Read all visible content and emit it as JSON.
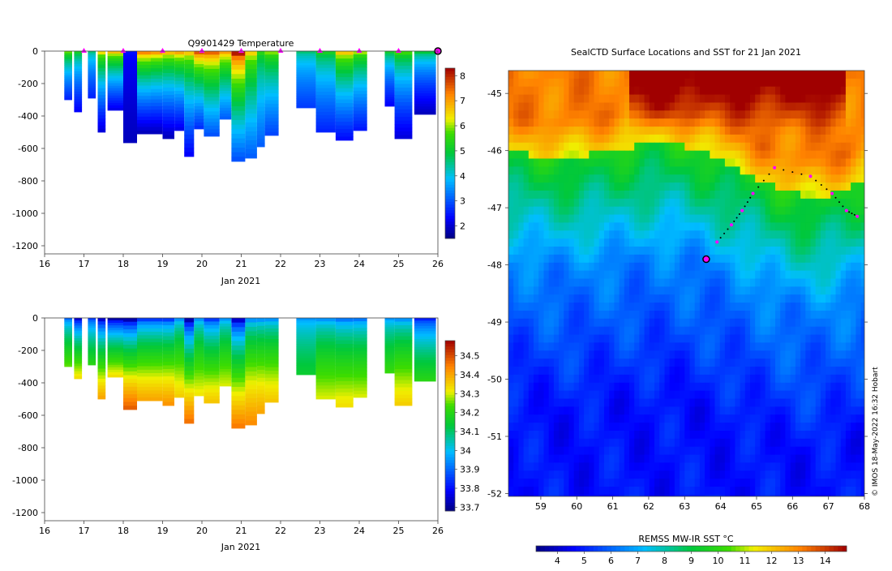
{
  "figure": {
    "footer": "© IMOS 18-May-2022 16:32 Hobart"
  },
  "chart_data": [
    {
      "type": "heatmap",
      "id": "temperature-section",
      "title": "Q9901429  Temperature",
      "xlabel": "Jan 2021",
      "ylabel": "",
      "xlim": [
        16,
        26
      ],
      "ylim": [
        -1250,
        0
      ],
      "xticks": [
        "16",
        "17",
        "18",
        "19",
        "20",
        "21",
        "22",
        "23",
        "24",
        "25",
        "26"
      ],
      "yticks": [
        "0",
        "-200",
        "-400",
        "-600",
        "-800",
        "-1000",
        "-1200"
      ],
      "ytick_values": [
        0,
        -200,
        -400,
        -600,
        -800,
        -1000,
        -1200
      ],
      "colorbar": {
        "min": 1.5,
        "max": 8.3,
        "ticks": [
          "2",
          "3",
          "4",
          "5",
          "6",
          "7",
          "8"
        ],
        "tick_values": [
          2,
          3,
          4,
          5,
          6,
          7,
          8
        ]
      },
      "profile_markers_day": [
        17,
        18,
        19,
        20,
        21,
        22,
        23,
        24,
        25
      ],
      "current_marker": {
        "day": 26,
        "depth": 0
      },
      "profiles": [
        {
          "day": 16.5,
          "width": 0.2,
          "max_depth": 300,
          "surface": 5.8,
          "deep": 2.6
        },
        {
          "day": 16.75,
          "width": 0.2,
          "max_depth": 375,
          "surface": 5.2,
          "deep": 2.3
        },
        {
          "day": 17.1,
          "width": 0.2,
          "max_depth": 290,
          "surface": 4.6,
          "deep": 2.6
        },
        {
          "day": 17.35,
          "width": 0.2,
          "max_depth": 500,
          "surface": 6.4,
          "deep": 2.1
        },
        {
          "day": 17.6,
          "width": 0.4,
          "max_depth": 365,
          "surface": 6.7,
          "deep": 2.2
        },
        {
          "day": 18.0,
          "width": 0.35,
          "max_depth": 565,
          "surface": 2.4,
          "deep": 1.9
        },
        {
          "day": 18.35,
          "width": 0.35,
          "max_depth": 510,
          "surface": 7.2,
          "deep": 1.9
        },
        {
          "day": 18.7,
          "width": 0.3,
          "max_depth": 510,
          "surface": 7.0,
          "deep": 1.9
        },
        {
          "day": 19.0,
          "width": 0.3,
          "max_depth": 540,
          "surface": 6.7,
          "deep": 1.9
        },
        {
          "day": 19.3,
          "width": 0.25,
          "max_depth": 490,
          "surface": 6.9,
          "deep": 2.2
        },
        {
          "day": 19.55,
          "width": 0.25,
          "max_depth": 650,
          "surface": 6.6,
          "deep": 2.3
        },
        {
          "day": 19.8,
          "width": 0.25,
          "max_depth": 480,
          "surface": 7.6,
          "deep": 2.7
        },
        {
          "day": 20.05,
          "width": 0.4,
          "max_depth": 525,
          "surface": 7.5,
          "deep": 3.0
        },
        {
          "day": 20.45,
          "width": 0.3,
          "max_depth": 420,
          "surface": 7.0,
          "deep": 3.1
        },
        {
          "day": 20.75,
          "width": 0.35,
          "max_depth": 680,
          "surface": 8.1,
          "deep": 3.0
        },
        {
          "day": 21.1,
          "width": 0.3,
          "max_depth": 660,
          "surface": 6.5,
          "deep": 3.1
        },
        {
          "day": 21.4,
          "width": 0.2,
          "max_depth": 590,
          "surface": 5.4,
          "deep": 3.1
        },
        {
          "day": 21.6,
          "width": 0.35,
          "max_depth": 520,
          "surface": 5.9,
          "deep": 2.9
        },
        {
          "day": 22.4,
          "width": 0.5,
          "max_depth": 350,
          "surface": 4.6,
          "deep": 2.8
        },
        {
          "day": 22.9,
          "width": 0.5,
          "max_depth": 500,
          "surface": 5.2,
          "deep": 2.6
        },
        {
          "day": 23.4,
          "width": 0.45,
          "max_depth": 550,
          "surface": 6.6,
          "deep": 2.4
        },
        {
          "day": 23.85,
          "width": 0.35,
          "max_depth": 490,
          "surface": 6.0,
          "deep": 2.5
        },
        {
          "day": 24.65,
          "width": 0.25,
          "max_depth": 340,
          "surface": 5.1,
          "deep": 2.3
        },
        {
          "day": 24.9,
          "width": 0.45,
          "max_depth": 540,
          "surface": 5.6,
          "deep": 2.1
        },
        {
          "day": 25.4,
          "width": 0.55,
          "max_depth": 390,
          "surface": 4.9,
          "deep": 1.9
        }
      ]
    },
    {
      "type": "heatmap",
      "id": "salinity-section",
      "title": "",
      "xlabel": "Jan 2021",
      "ylabel": "",
      "xlim": [
        16,
        26
      ],
      "ylim": [
        -1250,
        0
      ],
      "xticks": [
        "16",
        "17",
        "18",
        "19",
        "20",
        "21",
        "22",
        "23",
        "24",
        "25",
        "26"
      ],
      "yticks": [
        "0",
        "-200",
        "-400",
        "-600",
        "-800",
        "-1000",
        "-1200"
      ],
      "ytick_values": [
        0,
        -200,
        -400,
        -600,
        -800,
        -1000,
        -1200
      ],
      "colorbar": {
        "min": 33.68,
        "max": 34.58,
        "ticks": [
          "33.7",
          "33.8",
          "33.9",
          "34",
          "34.1",
          "34.2",
          "34.3",
          "34.4",
          "34.5"
        ],
        "tick_values": [
          33.7,
          33.8,
          33.9,
          34.0,
          34.1,
          34.2,
          34.3,
          34.4,
          34.5
        ]
      },
      "profiles": [
        {
          "day": 16.5,
          "width": 0.2,
          "max_depth": 300,
          "surface": 33.9,
          "deep": 34.25
        },
        {
          "day": 16.75,
          "width": 0.2,
          "max_depth": 375,
          "surface": 33.75,
          "deep": 34.33
        },
        {
          "day": 17.1,
          "width": 0.2,
          "max_depth": 290,
          "surface": 33.85,
          "deep": 34.2
        },
        {
          "day": 17.35,
          "width": 0.2,
          "max_depth": 500,
          "surface": 33.75,
          "deep": 34.4
        },
        {
          "day": 17.6,
          "width": 0.4,
          "max_depth": 365,
          "surface": 33.72,
          "deep": 34.33
        },
        {
          "day": 18.0,
          "width": 0.35,
          "max_depth": 565,
          "surface": 33.72,
          "deep": 34.48
        },
        {
          "day": 18.35,
          "width": 0.35,
          "max_depth": 510,
          "surface": 33.85,
          "deep": 34.4
        },
        {
          "day": 18.7,
          "width": 0.3,
          "max_depth": 510,
          "surface": 33.85,
          "deep": 34.4
        },
        {
          "day": 19.0,
          "width": 0.3,
          "max_depth": 540,
          "surface": 33.85,
          "deep": 34.42
        },
        {
          "day": 19.3,
          "width": 0.25,
          "max_depth": 490,
          "surface": 33.95,
          "deep": 34.35
        },
        {
          "day": 19.55,
          "width": 0.25,
          "max_depth": 650,
          "surface": 33.72,
          "deep": 34.46
        },
        {
          "day": 19.8,
          "width": 0.25,
          "max_depth": 480,
          "surface": 33.95,
          "deep": 34.32
        },
        {
          "day": 20.05,
          "width": 0.4,
          "max_depth": 525,
          "surface": 33.85,
          "deep": 34.36
        },
        {
          "day": 20.45,
          "width": 0.3,
          "max_depth": 420,
          "surface": 33.95,
          "deep": 34.3
        },
        {
          "day": 20.75,
          "width": 0.35,
          "max_depth": 680,
          "surface": 33.75,
          "deep": 34.45
        },
        {
          "day": 21.1,
          "width": 0.3,
          "max_depth": 660,
          "surface": 33.95,
          "deep": 34.43
        },
        {
          "day": 21.4,
          "width": 0.2,
          "max_depth": 590,
          "surface": 33.95,
          "deep": 34.4
        },
        {
          "day": 21.6,
          "width": 0.35,
          "max_depth": 520,
          "surface": 33.95,
          "deep": 34.36
        },
        {
          "day": 22.4,
          "width": 0.5,
          "max_depth": 350,
          "surface": 33.95,
          "deep": 34.15
        },
        {
          "day": 22.9,
          "width": 0.5,
          "max_depth": 500,
          "surface": 33.95,
          "deep": 34.3
        },
        {
          "day": 23.4,
          "width": 0.45,
          "max_depth": 550,
          "surface": 33.92,
          "deep": 34.33
        },
        {
          "day": 23.85,
          "width": 0.35,
          "max_depth": 490,
          "surface": 33.92,
          "deep": 34.3
        },
        {
          "day": 24.65,
          "width": 0.25,
          "max_depth": 340,
          "surface": 33.95,
          "deep": 34.22
        },
        {
          "day": 24.9,
          "width": 0.45,
          "max_depth": 540,
          "surface": 33.95,
          "deep": 34.35
        },
        {
          "day": 25.4,
          "width": 0.55,
          "max_depth": 390,
          "surface": 33.82,
          "deep": 34.2
        }
      ]
    },
    {
      "type": "heatmap",
      "id": "sst-map",
      "title": "SealCTD Surface Locations and SST for 21 Jan 2021",
      "xlabel": "",
      "ylabel": "",
      "xlim": [
        58.1,
        68.0
      ],
      "ylim": [
        -52.05,
        -44.6
      ],
      "xticks": [
        "59",
        "60",
        "61",
        "62",
        "63",
        "64",
        "65",
        "66",
        "67",
        "68"
      ],
      "xtick_values": [
        59,
        60,
        61,
        62,
        63,
        64,
        65,
        66,
        67,
        68
      ],
      "yticks": [
        "-45",
        "-46",
        "-47",
        "-48",
        "-49",
        "-50",
        "-51",
        "-52"
      ],
      "ytick_values": [
        -45,
        -46,
        -47,
        -48,
        -49,
        -50,
        -51,
        -52
      ],
      "colorbar": {
        "label": "REMSS MW-IR SST °C",
        "min": 3.2,
        "max": 14.8,
        "ticks": [
          "4",
          "5",
          "6",
          "7",
          "8",
          "9",
          "10",
          "11",
          "12",
          "13",
          "14"
        ],
        "tick_values": [
          4,
          5,
          6,
          7,
          8,
          9,
          10,
          11,
          12,
          13,
          14
        ]
      },
      "track_daily_positions": [
        {
          "lon": 67.8,
          "lat": -47.15
        },
        {
          "lon": 67.5,
          "lat": -47.05
        },
        {
          "lon": 67.1,
          "lat": -46.75
        },
        {
          "lon": 66.5,
          "lat": -46.45
        },
        {
          "lon": 65.5,
          "lat": -46.3
        },
        {
          "lon": 64.9,
          "lat": -46.75
        },
        {
          "lon": 64.6,
          "lat": -47.05
        },
        {
          "lon": 64.3,
          "lat": -47.3
        },
        {
          "lon": 63.9,
          "lat": -47.6
        }
      ],
      "current_position": {
        "lon": 63.6,
        "lat": -47.9
      }
    }
  ]
}
